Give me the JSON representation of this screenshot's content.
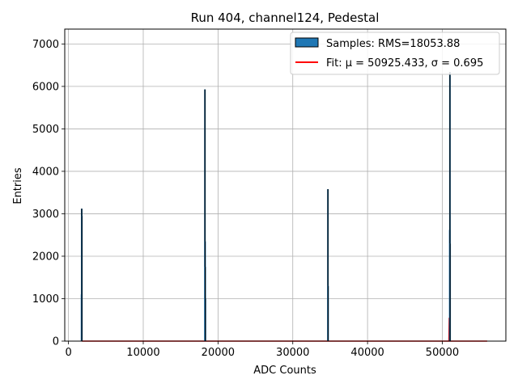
{
  "chart_data": {
    "type": "bar",
    "title": "Run 404, channel124, Pedestal",
    "xlabel": "ADC Counts",
    "ylabel": "Entries",
    "xlim": [
      -500,
      58500
    ],
    "ylim": [
      0,
      7350
    ],
    "xticks": [
      0,
      10000,
      20000,
      30000,
      40000,
      50000
    ],
    "yticks": [
      0,
      1000,
      2000,
      3000,
      4000,
      5000,
      6000,
      7000
    ],
    "grid": true,
    "legend_position": "top-right",
    "series": [
      {
        "name": "Samples: RMS=18053.88",
        "kind": "histogram",
        "color": "#1f77b4",
        "edge_color": "#000000",
        "x": [
          1750,
          1770,
          1790,
          18250,
          18270,
          18290,
          18310,
          34700,
          34720,
          51000,
          51020,
          51040
        ],
        "values": [
          1100,
          3120,
          2950,
          5930,
          2350,
          1750,
          1000,
          3580,
          1300,
          2620,
          6340,
          2300
        ]
      },
      {
        "name": "Fit: μ = 50925.433, σ = 0.695",
        "kind": "line",
        "color": "#ff0000",
        "x": [
          1800,
          50600,
          50880,
          50925,
          50970,
          51000,
          51050,
          56000
        ],
        "values": [
          0,
          0,
          0,
          550,
          0,
          0,
          0,
          0
        ]
      }
    ]
  }
}
